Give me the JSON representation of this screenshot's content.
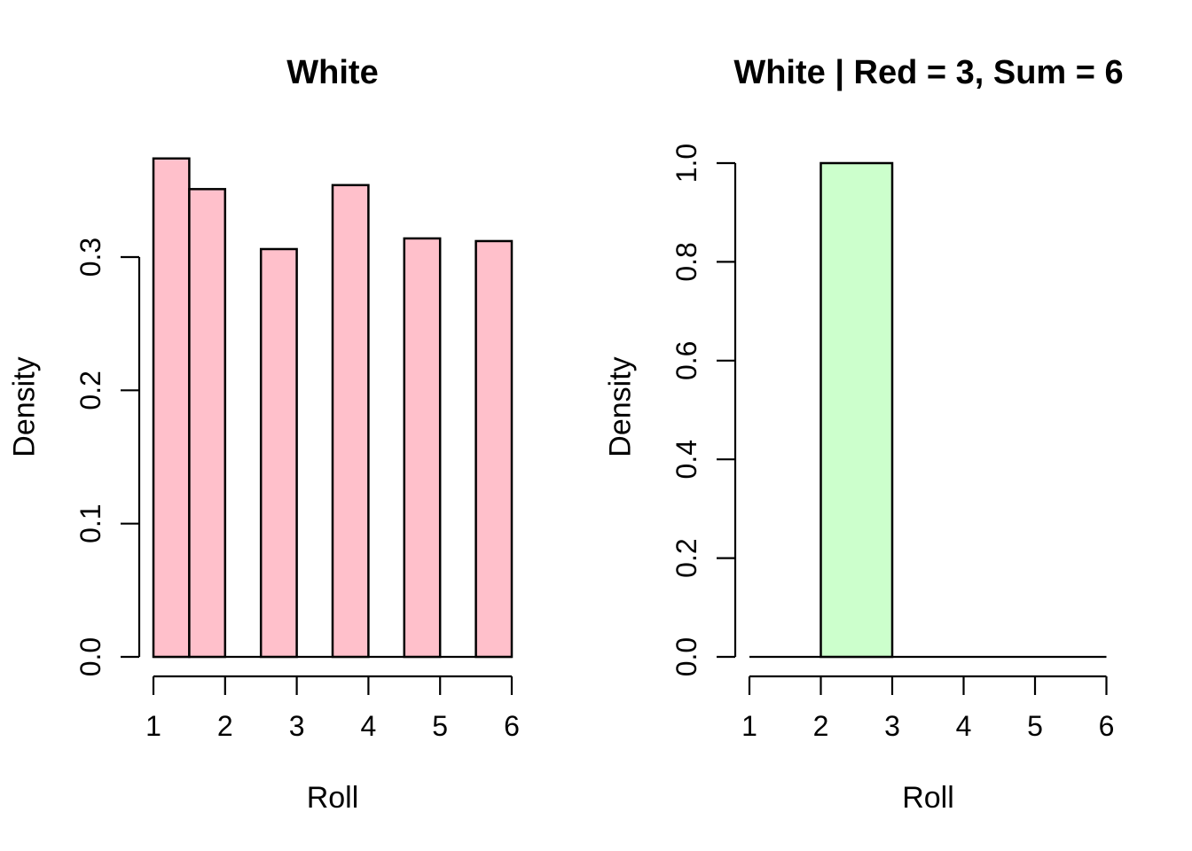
{
  "figure": {
    "background": "#FFFFFF",
    "layout": "two histograms side by side, R base graphics style"
  },
  "chart_data": [
    {
      "type": "bar",
      "subtype": "histogram-density",
      "title": "White",
      "xlabel": "Roll",
      "ylabel": "Density",
      "xlim": [
        1,
        6
      ],
      "ylim": [
        0,
        0.3
      ],
      "x_ticks": [
        "1",
        "2",
        "3",
        "4",
        "5",
        "6"
      ],
      "y_ticks": [
        "0.0",
        "0.1",
        "0.2",
        "0.3"
      ],
      "grid": false,
      "legend": "none",
      "bar_fill": "#FFC0CB",
      "bar_edge": "#000000",
      "baseline_span": [
        1,
        6
      ],
      "bars": [
        {
          "from": 1.0,
          "to": 1.5,
          "density": 0.374
        },
        {
          "from": 1.5,
          "to": 2.0,
          "density": 0.351
        },
        {
          "from": 2.5,
          "to": 3.0,
          "density": 0.306
        },
        {
          "from": 3.5,
          "to": 4.0,
          "density": 0.354
        },
        {
          "from": 4.5,
          "to": 5.0,
          "density": 0.314
        },
        {
          "from": 5.5,
          "to": 6.0,
          "density": 0.312
        }
      ]
    },
    {
      "type": "bar",
      "subtype": "histogram-density",
      "title": "White | Red = 3, Sum = 6",
      "xlabel": "Roll",
      "ylabel": "Density",
      "xlim": [
        1,
        6
      ],
      "ylim": [
        0,
        1.0
      ],
      "x_ticks": [
        "1",
        "2",
        "3",
        "4",
        "5",
        "6"
      ],
      "y_ticks": [
        "0.0",
        "0.2",
        "0.4",
        "0.6",
        "0.8",
        "1.0"
      ],
      "grid": false,
      "legend": "none",
      "bar_fill": "#CCFFCC",
      "bar_edge": "#000000",
      "baseline_span": [
        1,
        6
      ],
      "bars": [
        {
          "from": 2.0,
          "to": 3.0,
          "density": 1.0
        }
      ]
    }
  ],
  "colors": {
    "pink_bar": "#FFC0CB",
    "green_bar": "#CCFFCC",
    "axis": "#000000",
    "background": "#FFFFFF"
  }
}
